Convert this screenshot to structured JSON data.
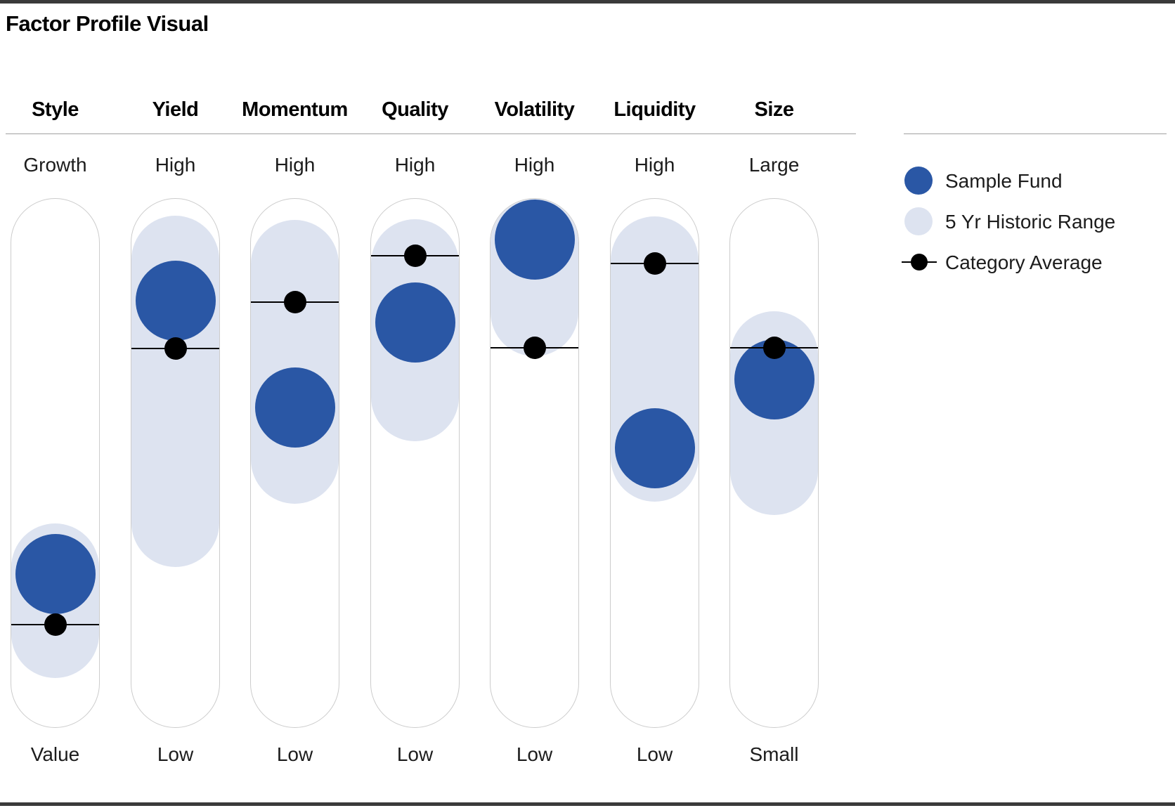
{
  "title": "Factor Profile Visual",
  "colors": {
    "fund": "#2a57a5",
    "range": "#dde3f0",
    "average": "#000000",
    "track_border": "#cccccc",
    "rule": "#a0a0a0",
    "bar": "#3a3a3a"
  },
  "legend": [
    {
      "label": "Sample Fund",
      "swatch": "dark-blue-circle"
    },
    {
      "label": "5 Yr Historic Range",
      "swatch": "light-blue-circle"
    },
    {
      "label": "Category Average",
      "swatch": "black-dot-on-line"
    }
  ],
  "chart_data": {
    "type": "factor-profile",
    "title": "Factor Profile Visual",
    "position_scale": "fraction of track height, 0 = top label (Growth/High/Large), 1 = bottom label (Value/Low/Small)",
    "factors": [
      {
        "name": "Style",
        "top_label": "Growth",
        "bottom_label": "Value",
        "fund": 0.71,
        "category_average": 0.805,
        "range": [
          0.614,
          0.906
        ]
      },
      {
        "name": "Yield",
        "top_label": "High",
        "bottom_label": "Low",
        "fund": 0.194,
        "category_average": 0.284,
        "range": [
          0.033,
          0.696
        ]
      },
      {
        "name": "Momentum",
        "top_label": "High",
        "bottom_label": "Low",
        "fund": 0.395,
        "category_average": 0.196,
        "range": [
          0.041,
          0.577
        ]
      },
      {
        "name": "Quality",
        "top_label": "High",
        "bottom_label": "Low",
        "fund": 0.235,
        "category_average": 0.109,
        "range": [
          0.04,
          0.459
        ]
      },
      {
        "name": "Volatility",
        "top_label": "High",
        "bottom_label": "Low",
        "fund": 0.078,
        "category_average": 0.283,
        "range": [
          0.001,
          0.298
        ]
      },
      {
        "name": "Liquidity",
        "top_label": "High",
        "bottom_label": "Low",
        "fund": 0.472,
        "category_average": 0.123,
        "range": [
          0.034,
          0.572
        ]
      },
      {
        "name": "Size",
        "top_label": "Large",
        "bottom_label": "Small",
        "fund": 0.342,
        "category_average": 0.283,
        "range": [
          0.214,
          0.598
        ]
      }
    ]
  }
}
